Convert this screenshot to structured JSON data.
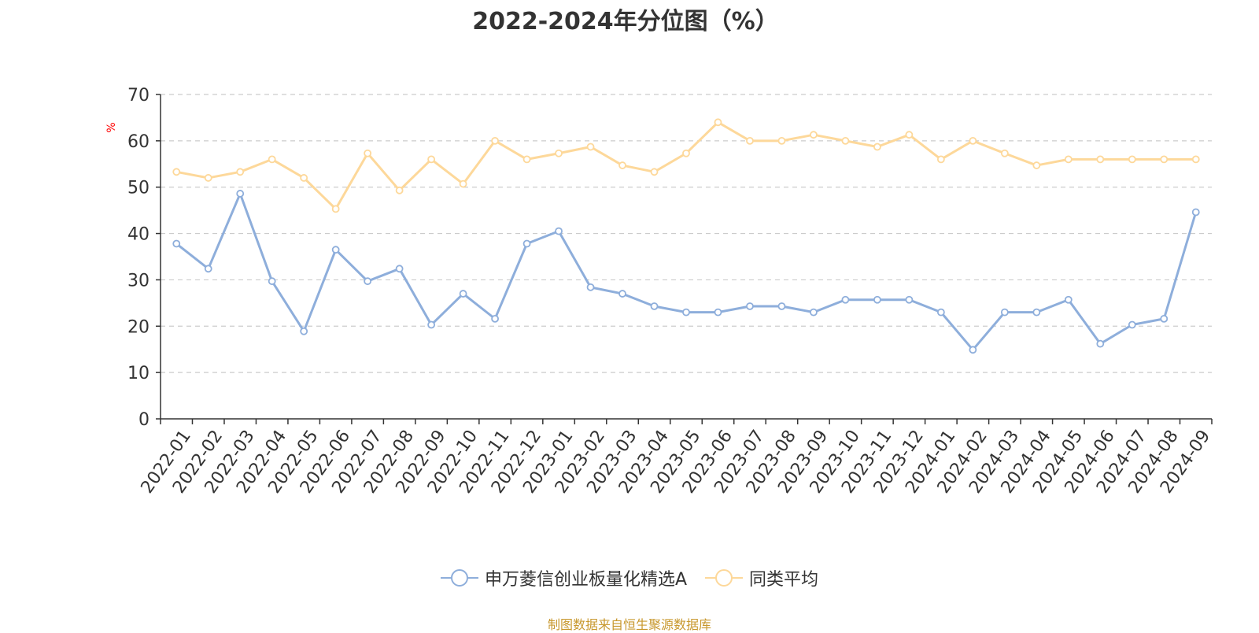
{
  "chart_data": {
    "type": "line",
    "title": "2022-2024年分位图（%）",
    "ylabel": "%",
    "xlabel": "",
    "ylim": [
      0,
      70
    ],
    "yticks": [
      0,
      10,
      20,
      30,
      40,
      50,
      60,
      70
    ],
    "grid": true,
    "legend_position": "bottom",
    "categories": [
      "2022-01",
      "2022-02",
      "2022-03",
      "2022-04",
      "2022-05",
      "2022-06",
      "2022-07",
      "2022-08",
      "2022-09",
      "2022-10",
      "2022-11",
      "2022-12",
      "2023-01",
      "2023-02",
      "2023-03",
      "2023-04",
      "2023-05",
      "2023-06",
      "2023-07",
      "2023-08",
      "2023-09",
      "2023-10",
      "2023-11",
      "2023-12",
      "2024-01",
      "2024-02",
      "2024-03",
      "2024-04",
      "2024-05",
      "2024-06",
      "2024-07",
      "2024-08",
      "2024-09"
    ],
    "series": [
      {
        "name": "申万菱信创业板量化精选A",
        "color": "#8eaedb",
        "values": [
          37.8,
          32.4,
          48.6,
          29.7,
          18.9,
          36.5,
          29.7,
          32.4,
          20.3,
          27.0,
          21.6,
          37.8,
          40.5,
          28.4,
          27.0,
          24.3,
          23.0,
          23.0,
          24.3,
          24.3,
          23.0,
          25.7,
          25.7,
          25.7,
          23.0,
          14.9,
          23.0,
          23.0,
          25.7,
          16.2,
          20.3,
          21.6,
          44.6
        ]
      },
      {
        "name": "同类平均",
        "color": "#fdd89a",
        "values": [
          53.3,
          52.0,
          53.3,
          56.0,
          52.0,
          45.3,
          57.3,
          49.3,
          56.0,
          50.7,
          60.0,
          56.0,
          57.3,
          58.7,
          54.7,
          53.3,
          57.3,
          64.0,
          60.0,
          60.0,
          61.3,
          60.0,
          58.7,
          61.3,
          56.0,
          60.0,
          57.3,
          54.7,
          56.0,
          56.0,
          56.0,
          56.0,
          56.0
        ]
      }
    ]
  },
  "footer": {
    "source": "制图数据来自恒生聚源数据库"
  }
}
